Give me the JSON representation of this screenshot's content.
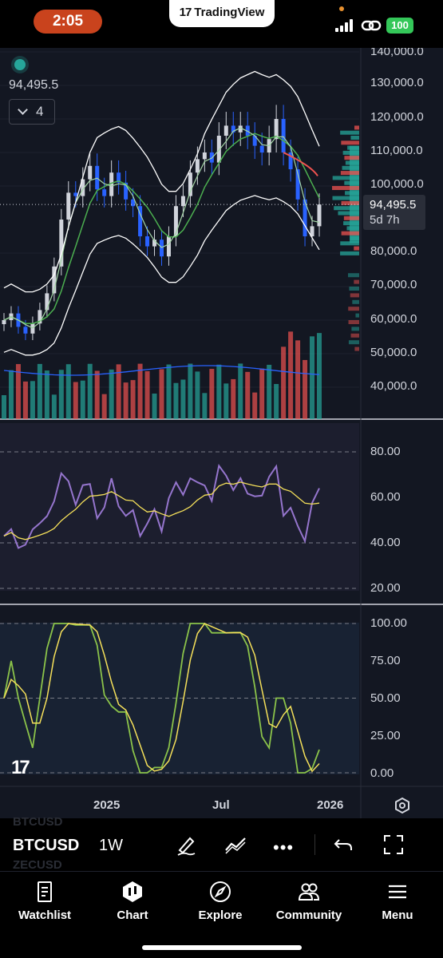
{
  "status_bar": {
    "time": "2:05",
    "app_badge": "TradingView",
    "battery": "100",
    "icons": [
      "signal-icon",
      "link-icon",
      "battery-icon"
    ]
  },
  "chart": {
    "legend": {
      "last_price": "94,495.5",
      "indicators_count": "4",
      "collapse_icon": "chevron-down-icon"
    },
    "price_tag": {
      "price": "94,495.5",
      "countdown": "5d 7h"
    },
    "price_scale": [
      "140,000.0",
      "130,000.0",
      "120,000.0",
      "110,000.0",
      "100,000.0",
      "80,000.0",
      "70,000.0",
      "60,000.0",
      "50,000.0",
      "40,000.0"
    ],
    "rsi_scale": [
      "80.00",
      "60.00",
      "40.00",
      "20.00"
    ],
    "stoch_scale": [
      "100.00",
      "75.00",
      "50.00",
      "25.00",
      "0.00"
    ],
    "time_axis": [
      "2025",
      "Jul",
      "2026"
    ],
    "watermark": "17",
    "colors": {
      "up": "#26a69a",
      "down": "#ef5350",
      "candle_up": "#d1d4dc",
      "candle_down": "#2962ff",
      "rsi": "#9575cd",
      "signal": "#f5e05a",
      "stoch_k": "#8bc34a"
    }
  },
  "chart_data": [
    {
      "type": "candlestick",
      "interval": "1W",
      "symbol": "BTCUSD",
      "ylim": [
        35000,
        142000
      ],
      "last_price": 94495.5,
      "y_ticks": [
        140000,
        130000,
        120000,
        110000,
        100000,
        80000,
        70000,
        60000,
        50000,
        40000
      ],
      "x_ticks": [
        "2025",
        "Jul",
        "2026"
      ],
      "close_path": [
        60000,
        62000,
        58000,
        56000,
        59000,
        63000,
        68000,
        76000,
        90000,
        98000,
        97000,
        102000,
        106000,
        99000,
        97000,
        104000,
        101000,
        96000,
        94000,
        85000,
        82000,
        84000,
        79000,
        85000,
        94000,
        97000,
        104000,
        108000,
        110000,
        107000,
        115000,
        118000,
        116000,
        118000,
        115000,
        112000,
        110000,
        114000,
        120000,
        110000,
        105000,
        96000,
        85000,
        88000,
        94495
      ]
    },
    {
      "type": "line",
      "name": "RSI",
      "ylim": [
        15,
        90
      ],
      "y_ticks": [
        80,
        60,
        40,
        20
      ]
    },
    {
      "type": "line",
      "name": "Stochastic",
      "ylim": [
        -5,
        105
      ],
      "y_ticks": [
        100,
        75,
        50,
        25,
        0
      ]
    }
  ],
  "toolbar": {
    "symbol": "BTCUSD",
    "interval": "1W",
    "ghost_top": "BTCUSD",
    "ghost_bottom": "ZECUSD",
    "tools": [
      "draw-icon",
      "trendline-icon",
      "more-icon",
      "undo-icon",
      "fullscreen-icon"
    ]
  },
  "tabbar": {
    "items": [
      {
        "label": "Watchlist",
        "icon": "watchlist-icon"
      },
      {
        "label": "Chart",
        "icon": "chart-icon"
      },
      {
        "label": "Explore",
        "icon": "compass-icon"
      },
      {
        "label": "Community",
        "icon": "community-icon"
      },
      {
        "label": "Menu",
        "icon": "menu-icon"
      }
    ]
  }
}
